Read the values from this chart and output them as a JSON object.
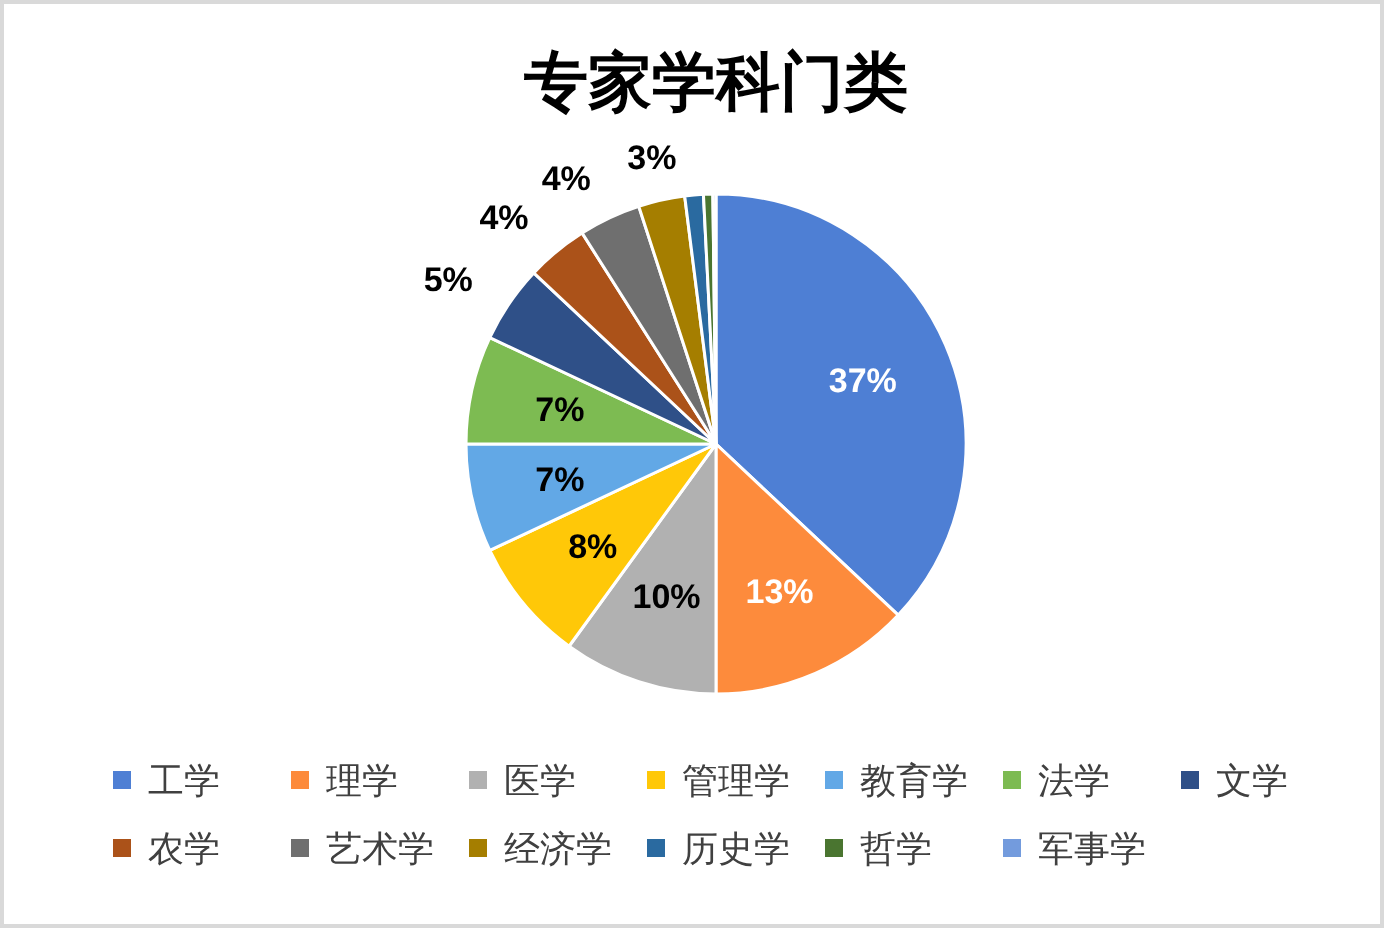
{
  "chart_data": {
    "type": "pie",
    "title": "专家学科门类",
    "categories": [
      "工学",
      "理学",
      "医学",
      "管理学",
      "教育学",
      "法学",
      "文学",
      "农学",
      "艺术学",
      "经济学",
      "历史学",
      "哲学",
      "军事学"
    ],
    "values": [
      37,
      13,
      10,
      8,
      7,
      7,
      5,
      4,
      4,
      3,
      1.2,
      0.6,
      0.2
    ],
    "colors": [
      "#4e7fd4",
      "#fd8b3c",
      "#b1b1b1",
      "#ffc808",
      "#62a8e6",
      "#7dbb52",
      "#2f5088",
      "#ab5219",
      "#6f6f6f",
      "#a57e00",
      "#2a6aa0",
      "#4a7530",
      "#739bdd"
    ],
    "value_labels": [
      "37%",
      "13%",
      "10%",
      "8%",
      "7%",
      "7%",
      "5%",
      "4%",
      "4%",
      "3%",
      null,
      null,
      null
    ],
    "legend": "bottom"
  }
}
